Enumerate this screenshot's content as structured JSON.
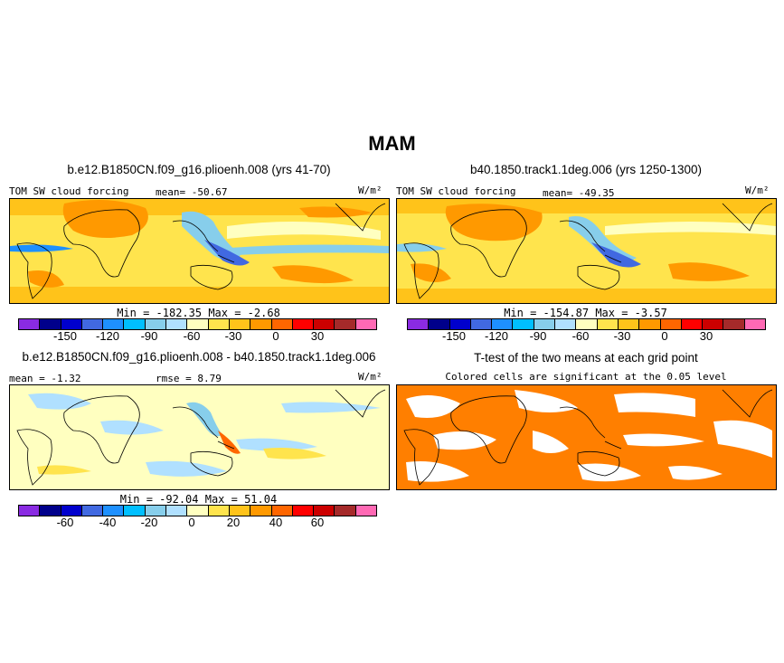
{
  "title": "MAM",
  "panels": {
    "top_left": {
      "title": "b.e12.B1850CN.f09_g16.plioenh.008 (yrs 41-70)",
      "label": "TOM SW cloud forcing",
      "stat": "mean= -50.67",
      "units": "W/m²",
      "minmax": "Min = -182.35 Max =  -2.68"
    },
    "top_right": {
      "title": "b40.1850.track1.1deg.006 (yrs 1250-1300)",
      "label": "TOM SW cloud forcing",
      "stat": "mean= -49.35",
      "units": "W/m²",
      "minmax": "Min = -154.87 Max =  -3.57"
    },
    "bottom_left": {
      "title": "b.e12.B1850CN.f09_g16.plioenh.008 - b40.1850.track1.1deg.006",
      "mean": "mean =  -1.32",
      "rmse": "rmse =   8.79",
      "units": "W/m²",
      "minmax": "Min = -92.04 Max =  51.04"
    },
    "bottom_right": {
      "title": "T-test of the two means at each grid point",
      "subtitle": "Colored cells are significant at the 0.05 level"
    }
  },
  "colorbars": {
    "abs": {
      "colors": [
        "#8a2be2",
        "#00008b",
        "#0000cd",
        "#4169e1",
        "#1e90ff",
        "#00bfff",
        "#87ceeb",
        "#b0e0ff",
        "#ffffc0",
        "#ffe44d",
        "#ffc31a",
        "#ff9900",
        "#ff6600",
        "#ff0000",
        "#cc0000",
        "#a52a2a",
        "#ff69b4"
      ],
      "ticks": [
        "-150",
        "-120",
        "-90",
        "-60",
        "-30",
        "0",
        "30"
      ]
    },
    "diff": {
      "colors": [
        "#8a2be2",
        "#00008b",
        "#0000cd",
        "#4169e1",
        "#1e90ff",
        "#00bfff",
        "#87ceeb",
        "#b0e0ff",
        "#ffffc0",
        "#ffe44d",
        "#ffc31a",
        "#ff9900",
        "#ff6600",
        "#ff0000",
        "#cc0000",
        "#a52a2a",
        "#ff69b4"
      ],
      "ticks": [
        "-60",
        "-40",
        "-20",
        "0",
        "20",
        "40",
        "60"
      ]
    }
  }
}
